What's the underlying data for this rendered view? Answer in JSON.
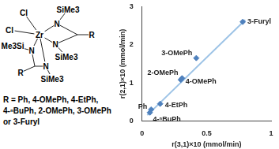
{
  "structure": {
    "atoms": [
      "Cl",
      "Cl",
      "Zr",
      "N",
      "N",
      "N",
      "N",
      "SiMe3",
      "SiMe3",
      "Me3Si",
      "SiMe3",
      "R",
      "R"
    ],
    "caption_lines": [
      "R = Ph, 4-OMePh, 4-EtPh,",
      "4-ⁿBuPh, 2-OMePh, 3-OMePh",
      "or 3-Furyl"
    ]
  },
  "chart_data": {
    "type": "scatter",
    "x_label": "r(3,1)×10 (mmol/min)",
    "y_label": "r(2,1)×10 (mmol/min)",
    "xlim": [
      0,
      1
    ],
    "xticks": [
      0,
      0.5,
      1
    ],
    "ylim": [
      0,
      3
    ],
    "yticks": [
      0,
      1,
      2,
      3
    ],
    "grid": false,
    "series": [
      {
        "type": "line",
        "color": "#9dc3e6",
        "line_style": "solid",
        "x": [
          0.04,
          0.8
        ],
        "values": [
          0.15,
          2.65
        ]
      },
      {
        "type": "scatter",
        "color": "#4f81bd",
        "marker": "diamond",
        "x": [
          0.06,
          0.07,
          0.14,
          0.3,
          0.31,
          0.42,
          0.78
        ],
        "values": [
          0.22,
          0.3,
          0.45,
          1.08,
          1.12,
          1.65,
          2.6
        ],
        "point_labels": [
          "4-ⁿBuPh",
          "Ph",
          "4-EtPh",
          "4-OMePh",
          "2-OMePh",
          "3-OMePh",
          "3-Furyl"
        ]
      }
    ]
  }
}
